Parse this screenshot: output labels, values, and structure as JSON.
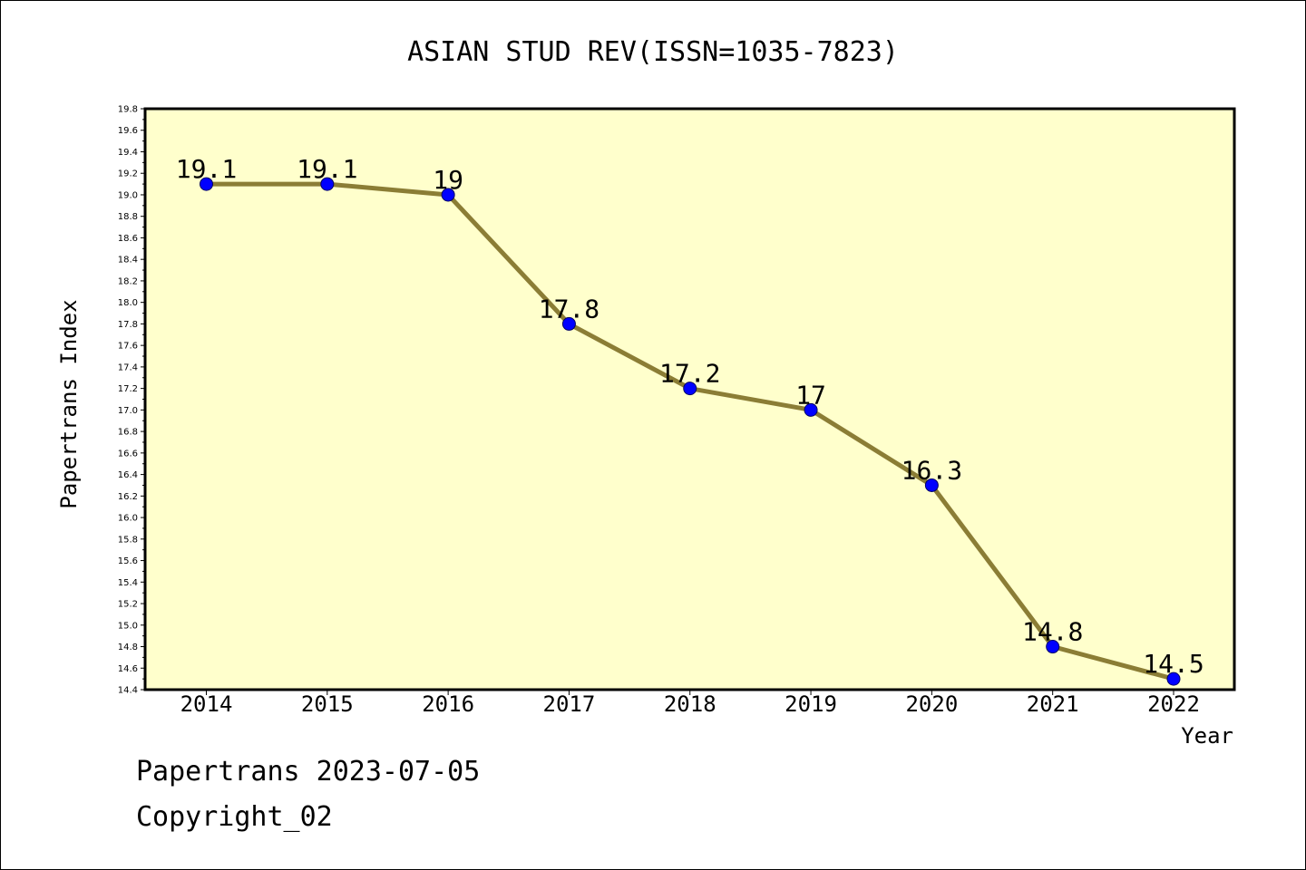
{
  "chart_data": {
    "type": "line",
    "title": "ASIAN STUD REV(ISSN=1035-7823)",
    "xlabel": "Year",
    "ylabel": "Papertrans Index",
    "categories": [
      "2014",
      "2015",
      "2016",
      "2017",
      "2018",
      "2019",
      "2020",
      "2021",
      "2022"
    ],
    "values": [
      19.1,
      19.1,
      19.0,
      17.8,
      17.2,
      17.0,
      16.3,
      14.8,
      14.5
    ],
    "data_labels": [
      "19.1",
      "19.1",
      "19",
      "17.8",
      "17.2",
      "17",
      "16.3",
      "14.8",
      "14.5"
    ],
    "ylim": [
      14.4,
      19.8
    ],
    "y_tick_labels": [
      "14.4",
      "14.6",
      "14.8",
      "15.0",
      "15.2",
      "15.4",
      "15.6",
      "15.8",
      "16.0",
      "16.2",
      "16.4",
      "16.6",
      "16.8",
      "17.0",
      "17.2",
      "17.4",
      "17.6",
      "17.8",
      "18.0",
      "18.2",
      "18.4",
      "18.6",
      "18.8",
      "19.0",
      "19.2",
      "19.4",
      "19.6",
      "19.8"
    ],
    "grid": false,
    "colors": {
      "plot_background": "#ffffcc",
      "line": "#8b7d35",
      "marker": "#0000ff"
    }
  },
  "footer": {
    "line1": "Papertrans 2023-07-05",
    "line2": "Copyright_02"
  }
}
